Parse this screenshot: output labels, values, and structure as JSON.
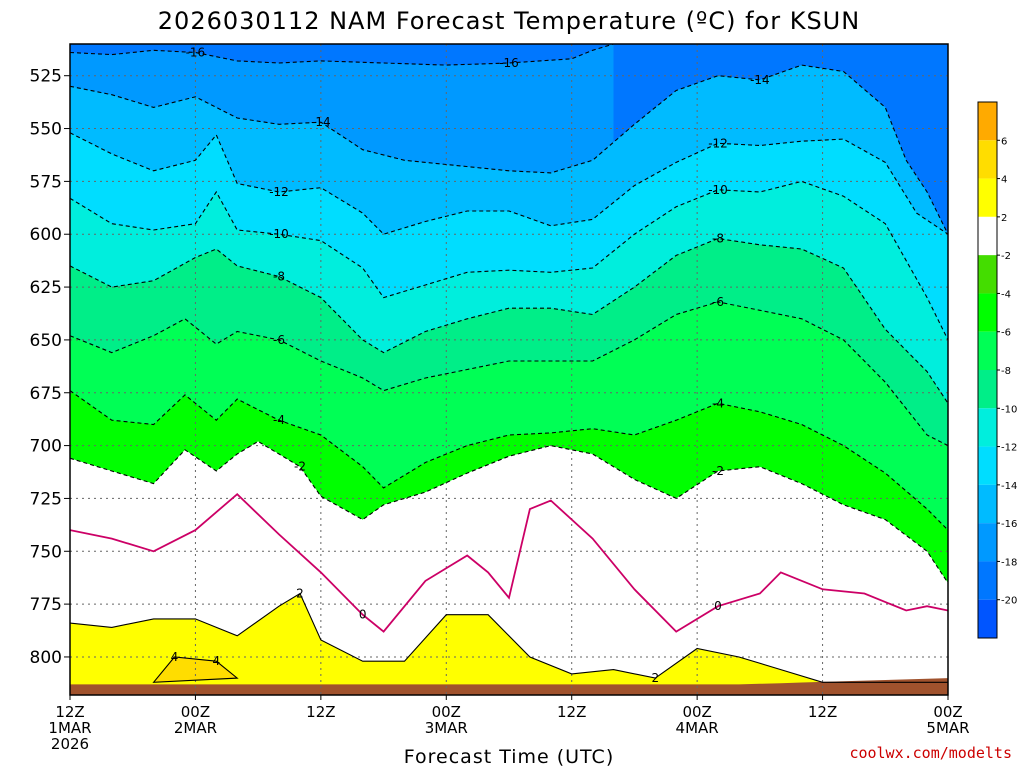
{
  "chart_data": {
    "type": "heatmap",
    "title": "2026030112 NAM Forecast Temperature (ºC) for KSUN",
    "xlabel": "Forecast Time (UTC)",
    "ylabel": "",
    "credit": "coolwx.com/modelts",
    "x_ticks": [
      {
        "hours": 0,
        "line1": "12Z",
        "line2": "1MAR",
        "line3": "2026"
      },
      {
        "hours": 12,
        "line1": "00Z",
        "line2": "2MAR",
        "line3": ""
      },
      {
        "hours": 24,
        "line1": "12Z",
        "line2": "",
        "line3": ""
      },
      {
        "hours": 36,
        "line1": "00Z",
        "line2": "3MAR",
        "line3": ""
      },
      {
        "hours": 48,
        "line1": "12Z",
        "line2": "",
        "line3": ""
      },
      {
        "hours": 60,
        "line1": "00Z",
        "line2": "4MAR",
        "line3": ""
      },
      {
        "hours": 72,
        "line1": "12Z",
        "line2": "",
        "line3": ""
      },
      {
        "hours": 84,
        "line1": "00Z",
        "line2": "5MAR",
        "line3": ""
      }
    ],
    "xlim_hours": [
      0,
      84
    ],
    "y_ticks": [
      "525",
      "550",
      "575",
      "600",
      "625",
      "650",
      "675",
      "700",
      "725",
      "750",
      "775",
      "800"
    ],
    "ylim_hPa": [
      510,
      818
    ],
    "levels": [
      -20,
      -18,
      -16,
      -14,
      -12,
      -10,
      -8,
      -6,
      -4,
      -2,
      2,
      4,
      6
    ],
    "colors": [
      "#0055ff",
      "#0077ff",
      "#0099ff",
      "#00bbff",
      "#00ddff",
      "#00eedd",
      "#00ee88",
      "#00ff55",
      "#00ff00",
      "#44dd00",
      "#ffffff",
      "#ffff00",
      "#ffdd00",
      "#ffaa00"
    ],
    "colorbar_labels": [
      "-20",
      "-18",
      "-16",
      "-14",
      "-12",
      "-10",
      "-8",
      "-6",
      "-4",
      "-2",
      "2",
      "4",
      "6"
    ],
    "terrain_color": "#a0522d",
    "zero_line_color": "#cc0066",
    "isotherms": [
      {
        "value": -16,
        "label": "-16",
        "points": [
          [
            0,
            514
          ],
          [
            4,
            515
          ],
          [
            8,
            513
          ],
          [
            12,
            514
          ],
          [
            16,
            518
          ],
          [
            20,
            519
          ],
          [
            24,
            518
          ],
          [
            30,
            519
          ],
          [
            36,
            520
          ],
          [
            42,
            519
          ],
          [
            48,
            517
          ],
          [
            50,
            513
          ],
          [
            52,
            510
          ]
        ]
      },
      {
        "value": -14,
        "label": "-14",
        "points": [
          [
            0,
            530
          ],
          [
            4,
            534
          ],
          [
            8,
            540
          ],
          [
            12,
            535
          ],
          [
            16,
            545
          ],
          [
            20,
            548
          ],
          [
            24,
            547
          ],
          [
            28,
            560
          ],
          [
            32,
            565
          ],
          [
            36,
            567
          ],
          [
            42,
            570
          ],
          [
            46,
            571
          ],
          [
            50,
            565
          ],
          [
            54,
            548
          ],
          [
            58,
            532
          ],
          [
            62,
            525
          ],
          [
            66,
            527
          ],
          [
            70,
            520
          ],
          [
            74,
            523
          ],
          [
            78,
            540
          ],
          [
            80,
            565
          ],
          [
            82,
            580
          ],
          [
            84,
            600
          ]
        ]
      },
      {
        "value": -12,
        "label": "-12",
        "points": [
          [
            0,
            552
          ],
          [
            4,
            562
          ],
          [
            8,
            570
          ],
          [
            12,
            565
          ],
          [
            14,
            553
          ],
          [
            16,
            576
          ],
          [
            20,
            580
          ],
          [
            24,
            578
          ],
          [
            28,
            590
          ],
          [
            30,
            600
          ],
          [
            34,
            594
          ],
          [
            38,
            589
          ],
          [
            42,
            589
          ],
          [
            46,
            596
          ],
          [
            50,
            593
          ],
          [
            54,
            577
          ],
          [
            58,
            566
          ],
          [
            62,
            557
          ],
          [
            66,
            558
          ],
          [
            70,
            556
          ],
          [
            74,
            555
          ],
          [
            78,
            566
          ],
          [
            81,
            590
          ],
          [
            84,
            600
          ]
        ]
      },
      {
        "value": -10,
        "label": "-10",
        "points": [
          [
            0,
            583
          ],
          [
            4,
            595
          ],
          [
            8,
            598
          ],
          [
            12,
            595
          ],
          [
            14,
            580
          ],
          [
            16,
            598
          ],
          [
            20,
            600
          ],
          [
            24,
            603
          ],
          [
            28,
            616
          ],
          [
            30,
            630
          ],
          [
            34,
            624
          ],
          [
            38,
            618
          ],
          [
            42,
            617
          ],
          [
            46,
            618
          ],
          [
            50,
            616
          ],
          [
            54,
            600
          ],
          [
            58,
            587
          ],
          [
            62,
            579
          ],
          [
            66,
            580
          ],
          [
            70,
            575
          ],
          [
            74,
            582
          ],
          [
            78,
            595
          ],
          [
            82,
            630
          ],
          [
            84,
            650
          ]
        ]
      },
      {
        "value": -8,
        "label": "-8",
        "points": [
          [
            0,
            615
          ],
          [
            4,
            625
          ],
          [
            8,
            622
          ],
          [
            12,
            611
          ],
          [
            14,
            607
          ],
          [
            16,
            615
          ],
          [
            20,
            620
          ],
          [
            24,
            630
          ],
          [
            28,
            650
          ],
          [
            30,
            656
          ],
          [
            34,
            646
          ],
          [
            38,
            640
          ],
          [
            42,
            635
          ],
          [
            46,
            635
          ],
          [
            50,
            638
          ],
          [
            54,
            625
          ],
          [
            58,
            610
          ],
          [
            62,
            602
          ],
          [
            66,
            605
          ],
          [
            70,
            607
          ],
          [
            74,
            616
          ],
          [
            78,
            645
          ],
          [
            82,
            665
          ],
          [
            84,
            680
          ]
        ]
      },
      {
        "value": -6,
        "label": "-6",
        "points": [
          [
            0,
            648
          ],
          [
            4,
            656
          ],
          [
            8,
            648
          ],
          [
            11,
            640
          ],
          [
            14,
            652
          ],
          [
            16,
            646
          ],
          [
            20,
            650
          ],
          [
            24,
            660
          ],
          [
            28,
            668
          ],
          [
            30,
            674
          ],
          [
            34,
            668
          ],
          [
            38,
            664
          ],
          [
            42,
            660
          ],
          [
            46,
            660
          ],
          [
            50,
            660
          ],
          [
            54,
            650
          ],
          [
            58,
            638
          ],
          [
            62,
            632
          ],
          [
            66,
            636
          ],
          [
            70,
            640
          ],
          [
            74,
            650
          ],
          [
            78,
            670
          ],
          [
            82,
            695
          ],
          [
            84,
            700
          ]
        ]
      },
      {
        "value": -4,
        "label": "-4",
        "points": [
          [
            0,
            674
          ],
          [
            4,
            688
          ],
          [
            8,
            690
          ],
          [
            11,
            676
          ],
          [
            14,
            688
          ],
          [
            16,
            678
          ],
          [
            20,
            688
          ],
          [
            24,
            695
          ],
          [
            28,
            710
          ],
          [
            30,
            720
          ],
          [
            34,
            708
          ],
          [
            38,
            700
          ],
          [
            42,
            695
          ],
          [
            46,
            694
          ],
          [
            50,
            692
          ],
          [
            54,
            695
          ],
          [
            58,
            688
          ],
          [
            62,
            680
          ],
          [
            66,
            684
          ],
          [
            70,
            690
          ],
          [
            74,
            700
          ],
          [
            78,
            713
          ],
          [
            82,
            730
          ],
          [
            84,
            740
          ]
        ]
      },
      {
        "value": -2,
        "label": "-2",
        "points": [
          [
            0,
            706
          ],
          [
            4,
            712
          ],
          [
            8,
            718
          ],
          [
            11,
            702
          ],
          [
            14,
            712
          ],
          [
            16,
            704
          ],
          [
            18,
            698
          ],
          [
            22,
            710
          ],
          [
            24,
            724
          ],
          [
            28,
            735
          ],
          [
            30,
            728
          ],
          [
            34,
            722
          ],
          [
            38,
            713
          ],
          [
            42,
            705
          ],
          [
            46,
            700
          ],
          [
            50,
            704
          ],
          [
            54,
            716
          ],
          [
            58,
            725
          ],
          [
            62,
            712
          ],
          [
            66,
            710
          ],
          [
            70,
            718
          ],
          [
            74,
            728
          ],
          [
            78,
            735
          ],
          [
            82,
            750
          ],
          [
            84,
            765
          ]
        ]
      },
      {
        "value": 0,
        "label": "0",
        "points": [
          [
            0,
            740
          ],
          [
            4,
            744
          ],
          [
            8,
            750
          ],
          [
            12,
            740
          ],
          [
            16,
            723
          ],
          [
            20,
            742
          ],
          [
            24,
            760
          ],
          [
            28,
            780
          ],
          [
            30,
            788
          ],
          [
            34,
            764
          ],
          [
            38,
            752
          ],
          [
            40,
            760
          ],
          [
            42,
            772
          ],
          [
            44,
            730
          ],
          [
            46,
            726
          ],
          [
            50,
            744
          ],
          [
            54,
            768
          ],
          [
            58,
            788
          ],
          [
            62,
            776
          ],
          [
            66,
            770
          ],
          [
            68,
            760
          ],
          [
            72,
            768
          ],
          [
            76,
            770
          ],
          [
            80,
            778
          ],
          [
            82,
            776
          ],
          [
            84,
            778
          ]
        ]
      },
      {
        "value": 2,
        "label": "2",
        "points": [
          [
            0,
            784
          ],
          [
            4,
            786
          ],
          [
            8,
            782
          ],
          [
            12,
            782
          ],
          [
            16,
            790
          ],
          [
            20,
            776
          ],
          [
            22,
            770
          ],
          [
            24,
            792
          ],
          [
            28,
            802
          ],
          [
            32,
            802
          ],
          [
            36,
            780
          ],
          [
            40,
            780
          ],
          [
            44,
            800
          ],
          [
            48,
            808
          ],
          [
            52,
            806
          ],
          [
            56,
            810
          ],
          [
            60,
            796
          ],
          [
            64,
            800
          ],
          [
            68,
            806
          ],
          [
            72,
            812
          ],
          [
            76,
            812
          ],
          [
            84,
            812
          ]
        ]
      },
      {
        "value": 4,
        "label": "4",
        "points": [
          [
            8,
            812
          ],
          [
            10,
            800
          ],
          [
            14,
            802
          ],
          [
            16,
            810
          ]
        ]
      }
    ]
  }
}
